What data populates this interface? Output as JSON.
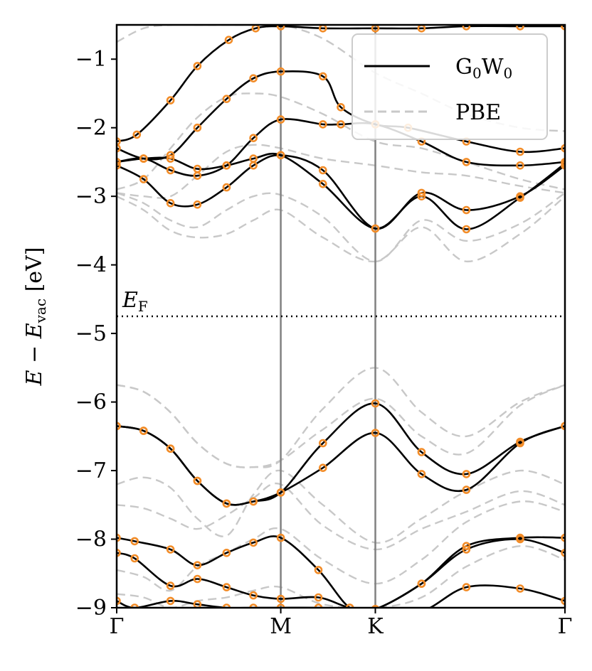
{
  "chart_data": {
    "type": "line",
    "title": "",
    "ylabel": {
      "main": "E − E",
      "sub": "vac",
      "unit": " [eV]"
    },
    "ylim": [
      -9,
      -0.5
    ],
    "xlim": [
      0,
      1
    ],
    "yticks": [
      -1,
      -2,
      -3,
      -4,
      -5,
      -6,
      -7,
      -8,
      -9
    ],
    "ytick_labels": [
      "−1",
      "−2",
      "−3",
      "−4",
      "−5",
      "−6",
      "−7",
      "−8",
      "−9"
    ],
    "kpoints": [
      {
        "label": "Γ",
        "x": 0.0
      },
      {
        "label": "M",
        "x": 0.366
      },
      {
        "label": "K",
        "x": 0.577
      },
      {
        "label": "Γ",
        "x": 1.0
      }
    ],
    "fermi_level": {
      "value": -4.75,
      "label_main": "E",
      "label_sub": "F"
    },
    "legend": {
      "position": "top-right",
      "entries": [
        {
          "label_main": "G",
          "label_sub1": "0",
          "label_mid": "W",
          "label_sub2": "0",
          "style": "solid",
          "color": "#000000"
        },
        {
          "label_main": "PBE",
          "style": "dashed",
          "color": "#c8c8c8"
        }
      ]
    },
    "colors": {
      "gw": "#000000",
      "pbe": "#c8c8c8",
      "markers": "#f28c28",
      "vline": "#808080"
    },
    "series": [
      {
        "name": "G0W0 band 1",
        "kind": "gw",
        "x": [
          0,
          0.045,
          0.12,
          0.18,
          0.25,
          0.31,
          0.366,
          0.46,
          0.577,
          0.68,
          0.78,
          0.9,
          1.0
        ],
        "y": [
          -2.2,
          -2.1,
          -1.6,
          -1.1,
          -0.72,
          -0.55,
          -0.52,
          -0.55,
          -0.55,
          -0.55,
          -0.52,
          -0.52,
          -0.52
        ]
      },
      {
        "name": "G0W0 band 2",
        "kind": "gw",
        "x": [
          0,
          0.06,
          0.12,
          0.18,
          0.245,
          0.305,
          0.366,
          0.46,
          0.5,
          0.577,
          0.65,
          0.78,
          0.9,
          1.0
        ],
        "y": [
          -2.3,
          -2.45,
          -2.4,
          -2.0,
          -1.58,
          -1.28,
          -1.18,
          -1.25,
          -1.7,
          -1.95,
          -2.0,
          -2.2,
          -2.35,
          -2.3
        ]
      },
      {
        "name": "G0W0 band 3",
        "kind": "gw",
        "x": [
          0,
          0.06,
          0.12,
          0.18,
          0.245,
          0.305,
          0.366,
          0.46,
          0.5,
          0.577,
          0.68,
          0.78,
          0.9,
          1.0
        ],
        "y": [
          -2.5,
          -2.45,
          -2.62,
          -2.7,
          -2.55,
          -2.15,
          -1.88,
          -1.95,
          -1.95,
          -1.95,
          -2.2,
          -2.5,
          -2.55,
          -2.5
        ]
      },
      {
        "name": "G0W0 band 4",
        "kind": "gw",
        "x": [
          0,
          0.06,
          0.12,
          0.18,
          0.245,
          0.305,
          0.366,
          0.46,
          0.577,
          0.68,
          0.78,
          0.9,
          1.0
        ],
        "y": [
          -2.55,
          -2.75,
          -3.1,
          -3.12,
          -2.87,
          -2.55,
          -2.4,
          -2.62,
          -3.47,
          -2.95,
          -3.2,
          -3.0,
          -2.55
        ]
      },
      {
        "name": "G0W0 band 5",
        "kind": "gw",
        "x": [
          0,
          0.06,
          0.12,
          0.18,
          0.245,
          0.305,
          0.366,
          0.46,
          0.577,
          0.68,
          0.78,
          0.9,
          1.0
        ],
        "y": [
          -2.5,
          -2.45,
          -2.45,
          -2.6,
          -2.55,
          -2.45,
          -2.4,
          -2.82,
          -3.47,
          -3.0,
          -3.48,
          -3.02,
          -2.52
        ]
      },
      {
        "name": "G0W0 band 6",
        "kind": "gw",
        "x": [
          0,
          0.06,
          0.12,
          0.18,
          0.245,
          0.305,
          0.366,
          0.46,
          0.577,
          0.68,
          0.78,
          0.9,
          1.0
        ],
        "y": [
          -6.35,
          -6.42,
          -6.68,
          -7.15,
          -7.48,
          -7.45,
          -7.32,
          -6.6,
          -6.02,
          -6.73,
          -7.05,
          -6.58,
          -6.35
        ]
      },
      {
        "name": "G0W0 band 7",
        "kind": "gw",
        "x": [
          0,
          0.06,
          0.12,
          0.18,
          0.245,
          0.305,
          0.366,
          0.46,
          0.577,
          0.68,
          0.78,
          0.9,
          1.0
        ],
        "y": [
          -6.35,
          -6.42,
          -6.68,
          -7.15,
          -7.48,
          -7.45,
          -7.32,
          -6.96,
          -6.45,
          -7.05,
          -7.28,
          -6.6,
          -6.35
        ]
      },
      {
        "name": "G0W0 band 8",
        "kind": "gw",
        "x": [
          0,
          0.04,
          0.12,
          0.18,
          0.245,
          0.305,
          0.366,
          0.45,
          0.52,
          0.577,
          0.68,
          0.78,
          0.9,
          1.0
        ],
        "y": [
          -7.98,
          -8.03,
          -8.15,
          -8.38,
          -8.2,
          -8.05,
          -7.98,
          -8.45,
          -9.0,
          -9.02,
          -8.65,
          -8.1,
          -7.98,
          -7.98
        ]
      },
      {
        "name": "G0W0 band 9",
        "kind": "gw",
        "x": [
          0,
          0.04,
          0.12,
          0.18,
          0.245,
          0.305,
          0.366,
          0.45,
          0.52,
          0.577,
          0.68,
          0.78,
          0.9,
          1.0
        ],
        "y": [
          -8.2,
          -8.28,
          -8.68,
          -8.58,
          -8.7,
          -8.82,
          -8.87,
          -8.85,
          -9.0,
          -9.02,
          -8.65,
          -8.15,
          -8.0,
          -8.2
        ]
      },
      {
        "name": "G0W0 band 10",
        "kind": "gw",
        "x": [
          0,
          0.04,
          0.12,
          0.18,
          0.245,
          0.305,
          0.366,
          0.45,
          0.577,
          0.68,
          0.78,
          0.9,
          1.0
        ],
        "y": [
          -8.9,
          -9.0,
          -8.9,
          -8.95,
          -9.0,
          -9.0,
          -9.0,
          -9.0,
          -9.02,
          -9.05,
          -8.7,
          -8.72,
          -8.9
        ]
      },
      {
        "name": "PBE band 1",
        "kind": "pbe",
        "x": [
          0,
          0.06,
          0.12,
          0.18,
          0.245,
          0.305,
          0.366,
          0.46,
          0.577,
          0.68,
          0.78,
          0.9,
          1.0
        ],
        "y": [
          -0.75,
          -0.55,
          -0.5,
          -0.5,
          -0.5,
          -0.5,
          -0.5,
          -0.7,
          -1.2,
          -1.5,
          -1.8,
          -2.0,
          -2.05
        ]
      },
      {
        "name": "PBE band 2",
        "kind": "pbe",
        "x": [
          0,
          0.06,
          0.12,
          0.18,
          0.245,
          0.305,
          0.366,
          0.46,
          0.577,
          0.68,
          0.78,
          0.9,
          1.0
        ],
        "y": [
          -2.9,
          -2.75,
          -2.3,
          -1.85,
          -1.55,
          -1.5,
          -1.55,
          -1.8,
          -2.2,
          -2.3,
          -2.5,
          -2.75,
          -2.9
        ]
      },
      {
        "name": "PBE band 3",
        "kind": "pbe",
        "x": [
          0,
          0.06,
          0.12,
          0.18,
          0.245,
          0.305,
          0.366,
          0.46,
          0.577,
          0.68,
          0.78,
          0.9,
          1.0
        ],
        "y": [
          -2.95,
          -3.0,
          -3.0,
          -2.7,
          -2.35,
          -2.25,
          -2.3,
          -2.45,
          -2.55,
          -2.65,
          -2.7,
          -2.85,
          -2.95
        ]
      },
      {
        "name": "PBE band 4",
        "kind": "pbe",
        "x": [
          0,
          0.06,
          0.12,
          0.18,
          0.245,
          0.305,
          0.366,
          0.46,
          0.577,
          0.68,
          0.78,
          0.9,
          1.0
        ],
        "y": [
          -2.95,
          -3.1,
          -3.35,
          -3.45,
          -3.2,
          -3.0,
          -2.98,
          -3.3,
          -3.95,
          -3.35,
          -3.65,
          -3.4,
          -2.95
        ]
      },
      {
        "name": "PBE band 5",
        "kind": "pbe",
        "x": [
          0,
          0.06,
          0.12,
          0.18,
          0.245,
          0.305,
          0.366,
          0.46,
          0.577,
          0.68,
          0.78,
          0.9,
          1.0
        ],
        "y": [
          -3.0,
          -3.2,
          -3.5,
          -3.6,
          -3.55,
          -3.35,
          -3.2,
          -3.6,
          -3.95,
          -3.45,
          -3.95,
          -3.55,
          -3.0
        ]
      },
      {
        "name": "PBE band 6",
        "kind": "pbe",
        "x": [
          0,
          0.06,
          0.12,
          0.18,
          0.245,
          0.305,
          0.366,
          0.46,
          0.577,
          0.68,
          0.78,
          0.9,
          1.0
        ],
        "y": [
          -5.75,
          -5.85,
          -6.15,
          -6.6,
          -6.9,
          -6.95,
          -6.85,
          -6.1,
          -5.5,
          -6.15,
          -6.5,
          -6.0,
          -5.75
        ]
      },
      {
        "name": "PBE band 7",
        "kind": "pbe",
        "x": [
          0,
          0.06,
          0.12,
          0.18,
          0.245,
          0.305,
          0.366,
          0.46,
          0.577,
          0.68,
          0.78,
          0.9,
          1.0
        ],
        "y": [
          -5.75,
          -5.85,
          -6.15,
          -6.6,
          -6.9,
          -6.95,
          -6.85,
          -6.4,
          -5.95,
          -6.5,
          -6.75,
          -6.05,
          -5.75
        ]
      },
      {
        "name": "PBE band 8",
        "kind": "pbe",
        "x": [
          0,
          0.06,
          0.12,
          0.18,
          0.245,
          0.305,
          0.366,
          0.46,
          0.577,
          0.68,
          0.78,
          0.9,
          1.0
        ],
        "y": [
          -7.2,
          -7.1,
          -7.25,
          -7.7,
          -7.95,
          -7.35,
          -7.0,
          -7.5,
          -8.05,
          -7.7,
          -7.3,
          -7.0,
          -7.2
        ]
      },
      {
        "name": "PBE band 9",
        "kind": "pbe",
        "x": [
          0,
          0.06,
          0.12,
          0.18,
          0.245,
          0.305,
          0.366,
          0.46,
          0.577,
          0.68,
          0.78,
          0.9,
          1.0
        ],
        "y": [
          -7.5,
          -7.55,
          -7.7,
          -7.85,
          -7.65,
          -7.4,
          -7.2,
          -7.8,
          -8.15,
          -7.85,
          -7.6,
          -7.3,
          -7.5
        ]
      },
      {
        "name": "PBE band 10",
        "kind": "pbe",
        "x": [
          0,
          0.06,
          0.12,
          0.18,
          0.245,
          0.305,
          0.366,
          0.46,
          0.577,
          0.68,
          0.78,
          0.9,
          1.0
        ],
        "y": [
          -8.45,
          -8.55,
          -8.75,
          -8.4,
          -8.2,
          -8.0,
          -7.85,
          -8.3,
          -8.65,
          -8.3,
          -7.75,
          -7.45,
          -7.6
        ]
      },
      {
        "name": "PBE band 11",
        "kind": "pbe",
        "x": [
          0,
          0.06,
          0.12,
          0.18,
          0.245,
          0.305,
          0.366,
          0.46,
          0.577,
          0.68,
          0.78,
          0.9,
          1.0
        ],
        "y": [
          -8.8,
          -8.85,
          -9.0,
          -8.9,
          -8.85,
          -8.75,
          -8.7,
          -8.95,
          -9.0,
          -8.85,
          -8.4,
          -8.1,
          -8.3
        ]
      }
    ]
  }
}
